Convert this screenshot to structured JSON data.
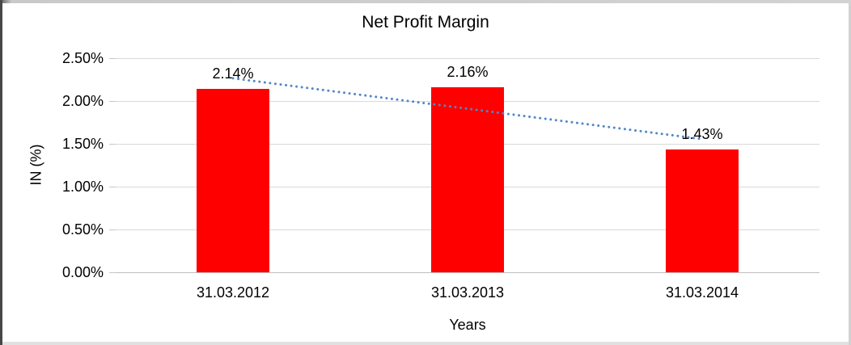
{
  "chart_data": {
    "type": "bar",
    "title": "Net Profit Margin",
    "xlabel": "Years",
    "ylabel": "IN (%)",
    "categories": [
      "31.03.2012",
      "31.03.2013",
      "31.03.2014"
    ],
    "series": [
      {
        "name": "Net Profit Margin",
        "values": [
          2.14,
          2.16,
          1.43
        ],
        "labels": [
          "2.14%",
          "2.16%",
          "1.43%"
        ],
        "color": "#ff0000"
      }
    ],
    "trendline": {
      "type": "linear",
      "style": "dotted",
      "color": "#4f87c7"
    },
    "ylim": [
      0,
      2.5
    ],
    "yticks": [
      0.0,
      0.5,
      1.0,
      1.5,
      2.0,
      2.5
    ],
    "ytick_labels": [
      "0.00%",
      "0.50%",
      "1.00%",
      "1.50%",
      "2.00%",
      "2.50%"
    ],
    "grid": true,
    "legend": false
  },
  "colors": {
    "bar": "#ff0000",
    "trendline": "#4f87c7",
    "gridline": "#d9d9d9",
    "axis_line": "#bdbdbd",
    "text": "#000000",
    "background": "#ffffff"
  }
}
